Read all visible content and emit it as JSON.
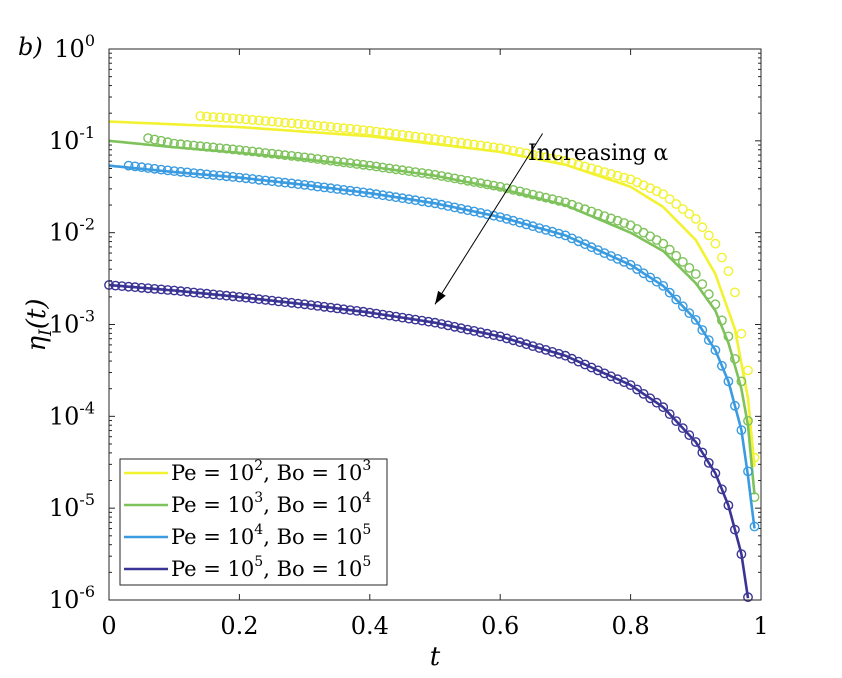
{
  "panel_label": "b)",
  "chart_data": {
    "type": "line",
    "xlabel": "t",
    "ylabel": {
      "base": "η",
      "sub": "I",
      "suffix": "(t)"
    },
    "xlim": [
      0,
      1
    ],
    "ylim_log10": [
      -6,
      0
    ],
    "yscale": "log",
    "x_ticks": [
      "0",
      "0.2",
      "0.4",
      "0.6",
      "0.8",
      "1"
    ],
    "y_ticks": [
      {
        "exp": 0,
        "label": "10",
        "sup": "0"
      },
      {
        "exp": -1,
        "label": "10",
        "sup": "-1"
      },
      {
        "exp": -2,
        "label": "10",
        "sup": "-2"
      },
      {
        "exp": -3,
        "label": "10",
        "sup": "-3"
      },
      {
        "exp": -4,
        "label": "10",
        "sup": "-4"
      },
      {
        "exp": -5,
        "label": "10",
        "sup": "-5"
      },
      {
        "exp": -6,
        "label": "10",
        "sup": "-6"
      }
    ],
    "annotation": {
      "text": "Increasing α",
      "arrow_from": [
        0.665,
        -0.92
      ],
      "arrow_to": [
        0.5,
        -2.78
      ]
    },
    "legend_position": "bottom-left",
    "series": [
      {
        "name": "yellow",
        "color": "#f2f230",
        "legend_parts": [
          "Pe = 10",
          "2",
          ", Bo = 10",
          "3"
        ],
        "line": [
          [
            0,
            -0.79
          ],
          [
            0.2,
            -0.85
          ],
          [
            0.4,
            -0.95
          ],
          [
            0.6,
            -1.12
          ],
          [
            0.7,
            -1.26
          ],
          [
            0.8,
            -1.5
          ],
          [
            0.85,
            -1.72
          ],
          [
            0.9,
            -2.08
          ],
          [
            0.93,
            -2.45
          ],
          [
            0.96,
            -3.05
          ],
          [
            0.98,
            -3.8
          ],
          [
            0.99,
            -4.55
          ]
        ],
        "markers": {
          "x_start": 0.14,
          "x_end": 0.99,
          "step": 0.01,
          "y_at": [
            [
              0.14,
              -0.73
            ],
            [
              0.2,
              -0.76
            ],
            [
              0.3,
              -0.82
            ],
            [
              0.4,
              -0.89
            ],
            [
              0.5,
              -0.98
            ],
            [
              0.6,
              -1.08
            ],
            [
              0.7,
              -1.22
            ],
            [
              0.8,
              -1.42
            ],
            [
              0.85,
              -1.58
            ],
            [
              0.9,
              -1.85
            ],
            [
              0.93,
              -2.12
            ],
            [
              0.95,
              -2.42
            ],
            [
              0.96,
              -2.65
            ],
            [
              0.97,
              -3.1
            ],
            [
              0.98,
              -3.5
            ],
            [
              0.99,
              -4.45
            ]
          ]
        }
      },
      {
        "name": "green",
        "color": "#7dc25a",
        "legend_parts": [
          "Pe = 10",
          "3",
          ", Bo = 10",
          "4"
        ],
        "line": [
          [
            0,
            -1.0
          ],
          [
            0.1,
            -1.07
          ],
          [
            0.2,
            -1.13
          ],
          [
            0.3,
            -1.2
          ],
          [
            0.4,
            -1.28
          ],
          [
            0.5,
            -1.38
          ],
          [
            0.6,
            -1.52
          ],
          [
            0.7,
            -1.7
          ],
          [
            0.8,
            -2.0
          ],
          [
            0.85,
            -2.2
          ],
          [
            0.9,
            -2.55
          ],
          [
            0.93,
            -2.85
          ],
          [
            0.95,
            -3.2
          ],
          [
            0.97,
            -3.7
          ],
          [
            0.98,
            -4.1
          ],
          [
            0.99,
            -4.85
          ]
        ],
        "markers": {
          "x_start": 0.06,
          "x_end": 0.99,
          "step": 0.01,
          "y_at": [
            [
              0.06,
              -0.97
            ],
            [
              0.1,
              -1.03
            ],
            [
              0.2,
              -1.1
            ],
            [
              0.3,
              -1.18
            ],
            [
              0.4,
              -1.27
            ],
            [
              0.5,
              -1.37
            ],
            [
              0.6,
              -1.5
            ],
            [
              0.7,
              -1.67
            ],
            [
              0.8,
              -1.92
            ],
            [
              0.85,
              -2.12
            ],
            [
              0.9,
              -2.45
            ],
            [
              0.93,
              -2.78
            ],
            [
              0.95,
              -3.13
            ],
            [
              0.97,
              -3.62
            ],
            [
              0.98,
              -4.05
            ],
            [
              0.99,
              -4.88
            ]
          ]
        }
      },
      {
        "name": "blue",
        "color": "#3a9be0",
        "legend_parts": [
          "Pe = 10",
          "4",
          ", Bo = 10",
          "5"
        ],
        "line": [
          [
            0,
            -1.27
          ],
          [
            0.1,
            -1.34
          ],
          [
            0.2,
            -1.4
          ],
          [
            0.3,
            -1.48
          ],
          [
            0.4,
            -1.57
          ],
          [
            0.5,
            -1.68
          ],
          [
            0.6,
            -1.83
          ],
          [
            0.7,
            -2.03
          ],
          [
            0.8,
            -2.35
          ],
          [
            0.85,
            -2.58
          ],
          [
            0.9,
            -2.95
          ],
          [
            0.93,
            -3.28
          ],
          [
            0.95,
            -3.62
          ],
          [
            0.97,
            -4.15
          ],
          [
            0.98,
            -4.65
          ],
          [
            0.99,
            -5.22
          ]
        ],
        "markers": {
          "x_start": 0.03,
          "x_end": 0.99,
          "step": 0.01,
          "y_at": [
            [
              0.03,
              -1.27
            ],
            [
              0.1,
              -1.33
            ],
            [
              0.2,
              -1.4
            ],
            [
              0.3,
              -1.48
            ],
            [
              0.4,
              -1.57
            ],
            [
              0.5,
              -1.68
            ],
            [
              0.6,
              -1.83
            ],
            [
              0.7,
              -2.03
            ],
            [
              0.8,
              -2.35
            ],
            [
              0.85,
              -2.58
            ],
            [
              0.9,
              -2.95
            ],
            [
              0.93,
              -3.28
            ],
            [
              0.95,
              -3.62
            ],
            [
              0.97,
              -4.15
            ],
            [
              0.98,
              -4.6
            ],
            [
              0.99,
              -5.2
            ]
          ]
        }
      },
      {
        "name": "indigo",
        "color": "#3a3494",
        "legend_parts": [
          "Pe = 10",
          "5",
          ", Bo = 10",
          "5"
        ],
        "line": [
          [
            0,
            -2.57
          ],
          [
            0.1,
            -2.63
          ],
          [
            0.2,
            -2.7
          ],
          [
            0.3,
            -2.78
          ],
          [
            0.4,
            -2.87
          ],
          [
            0.5,
            -2.98
          ],
          [
            0.6,
            -3.13
          ],
          [
            0.7,
            -3.34
          ],
          [
            0.8,
            -3.66
          ],
          [
            0.85,
            -3.9
          ],
          [
            0.9,
            -4.28
          ],
          [
            0.93,
            -4.62
          ],
          [
            0.95,
            -4.97
          ],
          [
            0.97,
            -5.5
          ],
          [
            0.98,
            -5.98
          ]
        ],
        "markers": {
          "x_start": 0.0,
          "x_end": 0.98,
          "step": 0.01,
          "y_at": [
            [
              0.0,
              -2.57
            ],
            [
              0.1,
              -2.63
            ],
            [
              0.2,
              -2.7
            ],
            [
              0.3,
              -2.78
            ],
            [
              0.4,
              -2.87
            ],
            [
              0.5,
              -2.98
            ],
            [
              0.6,
              -3.13
            ],
            [
              0.7,
              -3.34
            ],
            [
              0.8,
              -3.66
            ],
            [
              0.85,
              -3.9
            ],
            [
              0.9,
              -4.28
            ],
            [
              0.93,
              -4.62
            ],
            [
              0.95,
              -4.97
            ],
            [
              0.97,
              -5.5
            ],
            [
              0.98,
              -5.97
            ]
          ]
        }
      }
    ]
  }
}
